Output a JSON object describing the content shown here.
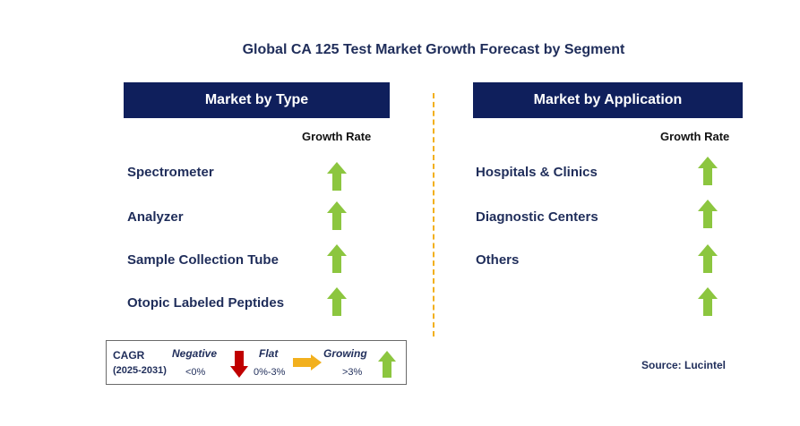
{
  "title": "Global CA 125 Test Market Growth Forecast by Segment",
  "colors": {
    "header_bg": "#0f1f5c",
    "text": "#1f2d5a",
    "divider": "#f2b01e",
    "up": "#8cc63f",
    "down": "#c00000",
    "flat": "#f2b01e"
  },
  "left_panel": {
    "header": "Market by Type",
    "growth_rate_label": "Growth Rate",
    "rows": [
      {
        "label": "Spectrometer",
        "trend": "growing"
      },
      {
        "label": "Analyzer",
        "trend": "growing"
      },
      {
        "label": "Sample Collection Tube",
        "trend": "growing"
      },
      {
        "label": "Otopic Labeled Peptides",
        "trend": "growing"
      }
    ]
  },
  "right_panel": {
    "header": "Market by Application",
    "growth_rate_label": "Growth Rate",
    "rows": [
      {
        "label": "Hospitals & Clinics",
        "trend": "growing"
      },
      {
        "label": "Diagnostic Centers",
        "trend": "growing"
      },
      {
        "label": "Others",
        "trend": "growing"
      },
      {
        "label": "",
        "trend": "growing"
      }
    ]
  },
  "legend": {
    "cagr_label": "CAGR",
    "period": "(2025-2031)",
    "negative": {
      "label": "Negative",
      "range": "<0%",
      "icon": "down-arrow-icon"
    },
    "flat": {
      "label": "Flat",
      "range": "0%-3%",
      "icon": "right-arrow-icon"
    },
    "growing": {
      "label": "Growing",
      "range": ">3%",
      "icon": "up-arrow-icon"
    }
  },
  "source": "Source: Lucintel"
}
